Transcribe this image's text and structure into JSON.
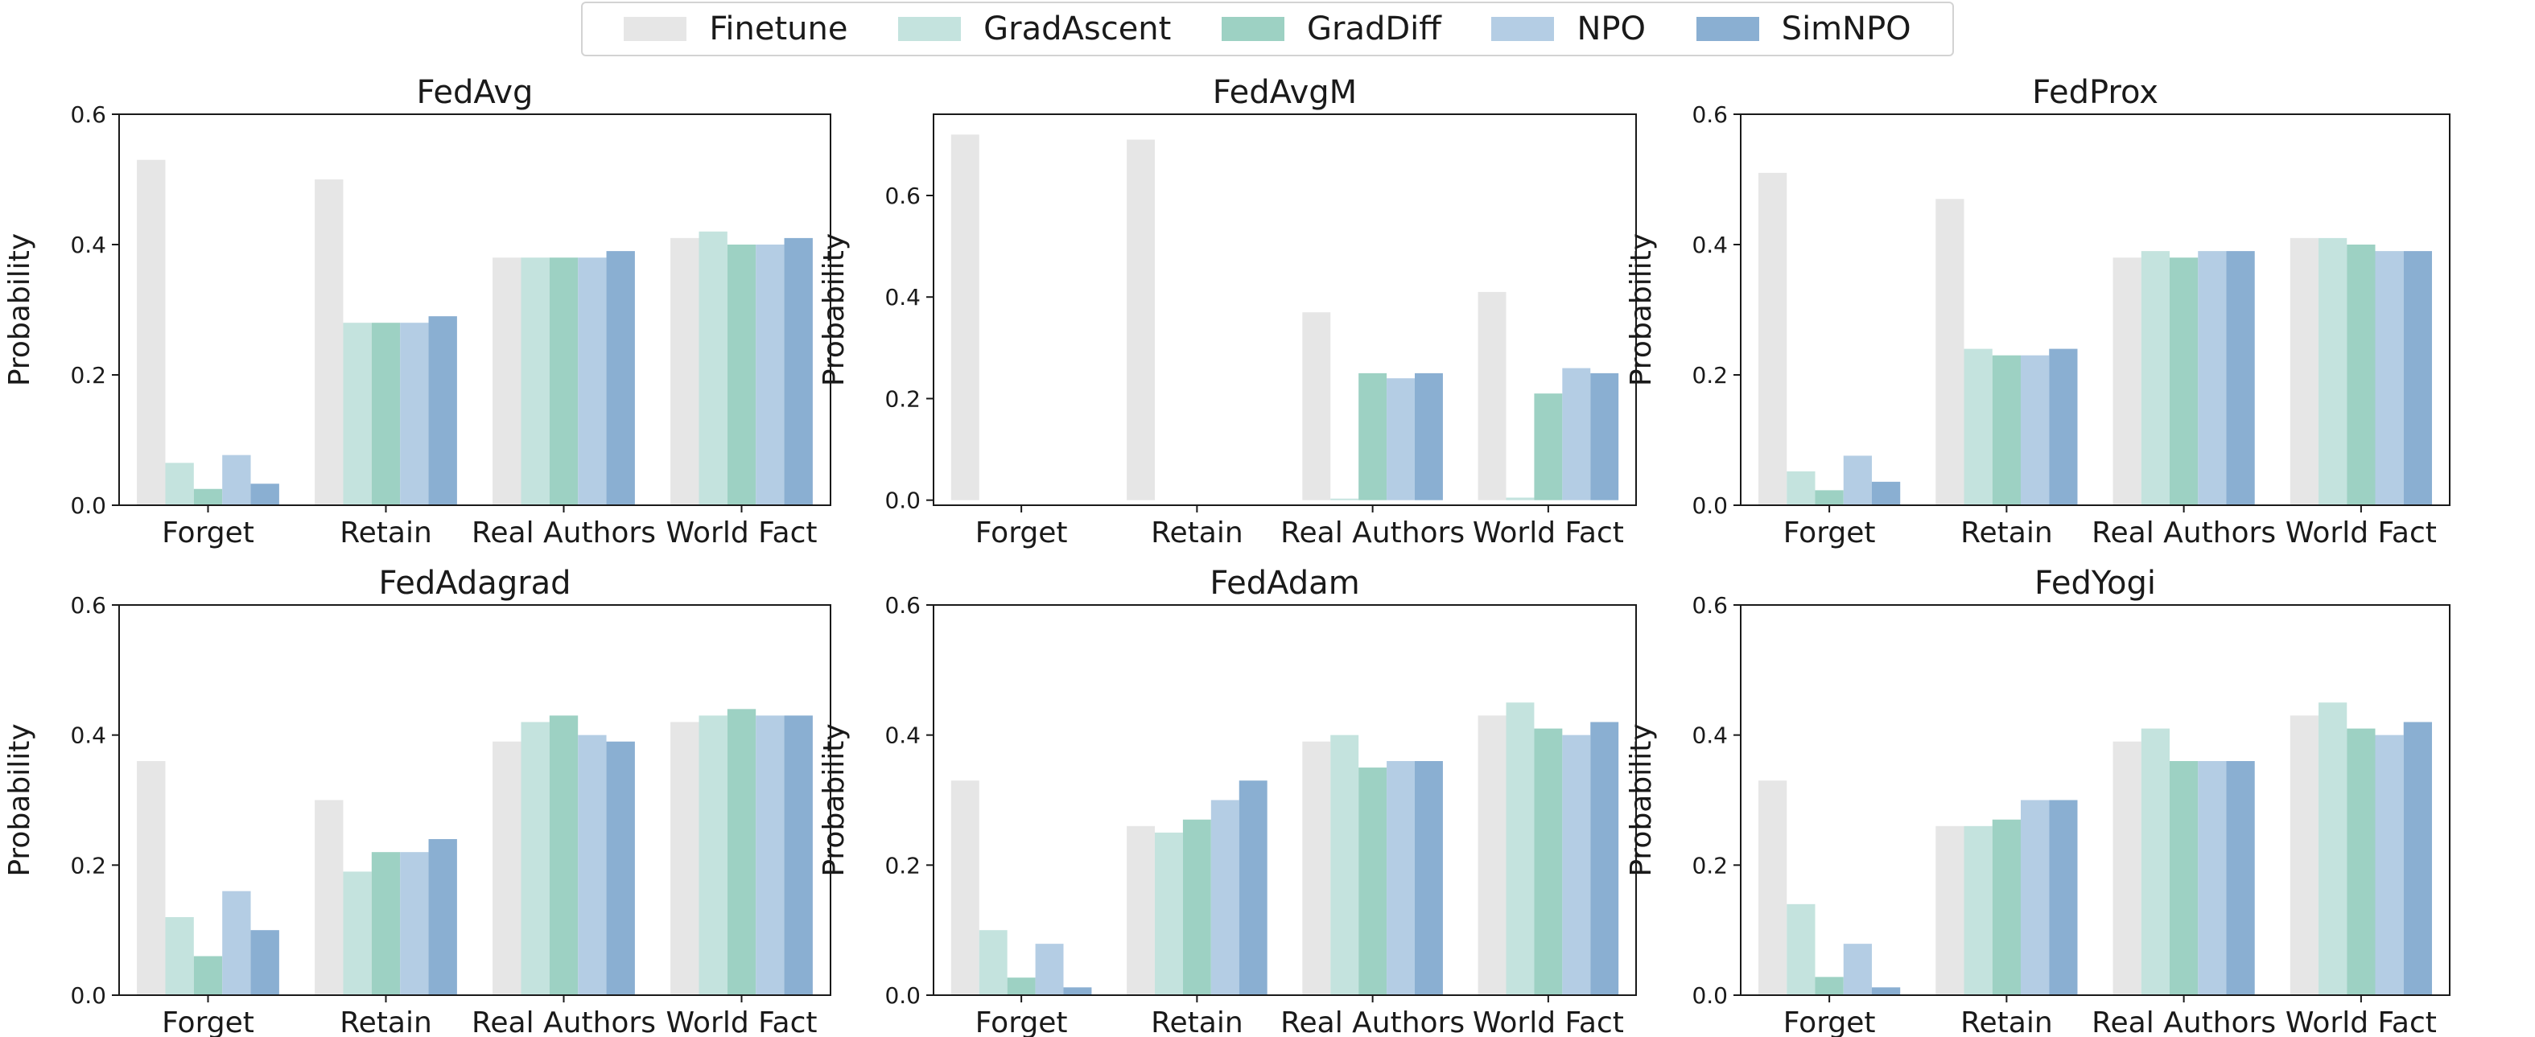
{
  "legend": {
    "placement": "top-center",
    "items": [
      {
        "name": "Finetune",
        "color": "#e6e6e6"
      },
      {
        "name": "GradAscent",
        "color": "#c4e3de"
      },
      {
        "name": "GradDiff",
        "color": "#9dd1c3"
      },
      {
        "name": "NPO",
        "color": "#b4cde4"
      },
      {
        "name": "SimNPO",
        "color": "#8aafd2"
      }
    ]
  },
  "chart_data": [
    {
      "type": "bar",
      "title": "FedAvg",
      "ylabel": "Probability",
      "ylim": [
        0,
        0.6
      ],
      "yticks": [
        "0.0",
        "0.2",
        "0.4",
        "0.6"
      ],
      "categories": [
        "Forget",
        "Retain",
        "Real Authors",
        "World Fact"
      ],
      "series": [
        {
          "name": "Finetune",
          "values": [
            0.53,
            0.5,
            0.38,
            0.41
          ]
        },
        {
          "name": "GradAscent",
          "values": [
            0.065,
            0.28,
            0.38,
            0.42
          ]
        },
        {
          "name": "GradDiff",
          "values": [
            0.025,
            0.28,
            0.38,
            0.4
          ]
        },
        {
          "name": "NPO",
          "values": [
            0.077,
            0.28,
            0.38,
            0.4
          ]
        },
        {
          "name": "SimNPO",
          "values": [
            0.033,
            0.29,
            0.39,
            0.41
          ]
        }
      ]
    },
    {
      "type": "bar",
      "title": "FedAvgM",
      "ylabel": "Probability",
      "ylim": [
        -0.01,
        0.76
      ],
      "yticks": [
        "0.0",
        "0.2",
        "0.4",
        "0.6"
      ],
      "categories": [
        "Forget",
        "Retain",
        "Real Authors",
        "World Fact"
      ],
      "series": [
        {
          "name": "Finetune",
          "values": [
            0.72,
            0.71,
            0.37,
            0.41
          ]
        },
        {
          "name": "GradAscent",
          "values": [
            0.0,
            0.0,
            0.003,
            0.005
          ]
        },
        {
          "name": "GradDiff",
          "values": [
            0.0,
            0.0,
            0.25,
            0.21
          ]
        },
        {
          "name": "NPO",
          "values": [
            0.0,
            0.0,
            0.24,
            0.26
          ]
        },
        {
          "name": "SimNPO",
          "values": [
            0.0,
            0.0,
            0.25,
            0.25
          ]
        }
      ]
    },
    {
      "type": "bar",
      "title": "FedProx",
      "ylabel": "Probability",
      "ylim": [
        0,
        0.6
      ],
      "yticks": [
        "0.0",
        "0.2",
        "0.4",
        "0.6"
      ],
      "categories": [
        "Forget",
        "Retain",
        "Real Authors",
        "World Fact"
      ],
      "series": [
        {
          "name": "Finetune",
          "values": [
            0.51,
            0.47,
            0.38,
            0.41
          ]
        },
        {
          "name": "GradAscent",
          "values": [
            0.052,
            0.24,
            0.39,
            0.41
          ]
        },
        {
          "name": "GradDiff",
          "values": [
            0.023,
            0.23,
            0.38,
            0.4
          ]
        },
        {
          "name": "NPO",
          "values": [
            0.076,
            0.23,
            0.39,
            0.39
          ]
        },
        {
          "name": "SimNPO",
          "values": [
            0.036,
            0.24,
            0.39,
            0.39
          ]
        }
      ]
    },
    {
      "type": "bar",
      "title": "FedAdagrad",
      "ylabel": "Probability",
      "ylim": [
        0,
        0.6
      ],
      "yticks": [
        "0.0",
        "0.2",
        "0.4",
        "0.6"
      ],
      "categories": [
        "Forget",
        "Retain",
        "Real Authors",
        "World Fact"
      ],
      "series": [
        {
          "name": "Finetune",
          "values": [
            0.36,
            0.3,
            0.39,
            0.42
          ]
        },
        {
          "name": "GradAscent",
          "values": [
            0.12,
            0.19,
            0.42,
            0.43
          ]
        },
        {
          "name": "GradDiff",
          "values": [
            0.06,
            0.22,
            0.43,
            0.44
          ]
        },
        {
          "name": "NPO",
          "values": [
            0.16,
            0.22,
            0.4,
            0.43
          ]
        },
        {
          "name": "SimNPO",
          "values": [
            0.1,
            0.24,
            0.39,
            0.43
          ]
        }
      ]
    },
    {
      "type": "bar",
      "title": "FedAdam",
      "ylabel": "Probability",
      "ylim": [
        0,
        0.6
      ],
      "yticks": [
        "0.0",
        "0.2",
        "0.4",
        "0.6"
      ],
      "categories": [
        "Forget",
        "Retain",
        "Real Authors",
        "World Fact"
      ],
      "series": [
        {
          "name": "Finetune",
          "values": [
            0.33,
            0.26,
            0.39,
            0.43
          ]
        },
        {
          "name": "GradAscent",
          "values": [
            0.1,
            0.25,
            0.4,
            0.45
          ]
        },
        {
          "name": "GradDiff",
          "values": [
            0.027,
            0.27,
            0.35,
            0.41
          ]
        },
        {
          "name": "NPO",
          "values": [
            0.079,
            0.3,
            0.36,
            0.4
          ]
        },
        {
          "name": "SimNPO",
          "values": [
            0.012,
            0.33,
            0.36,
            0.42
          ]
        }
      ]
    },
    {
      "type": "bar",
      "title": "FedYogi",
      "ylabel": "Probability",
      "ylim": [
        0,
        0.6
      ],
      "yticks": [
        "0.0",
        "0.2",
        "0.4",
        "0.6"
      ],
      "categories": [
        "Forget",
        "Retain",
        "Real Authors",
        "World Fact"
      ],
      "series": [
        {
          "name": "Finetune",
          "values": [
            0.33,
            0.26,
            0.39,
            0.43
          ]
        },
        {
          "name": "GradAscent",
          "values": [
            0.14,
            0.26,
            0.41,
            0.45
          ]
        },
        {
          "name": "GradDiff",
          "values": [
            0.028,
            0.27,
            0.36,
            0.41
          ]
        },
        {
          "name": "NPO",
          "values": [
            0.079,
            0.3,
            0.36,
            0.4
          ]
        },
        {
          "name": "SimNPO",
          "values": [
            0.012,
            0.3,
            0.36,
            0.42
          ]
        }
      ]
    }
  ]
}
